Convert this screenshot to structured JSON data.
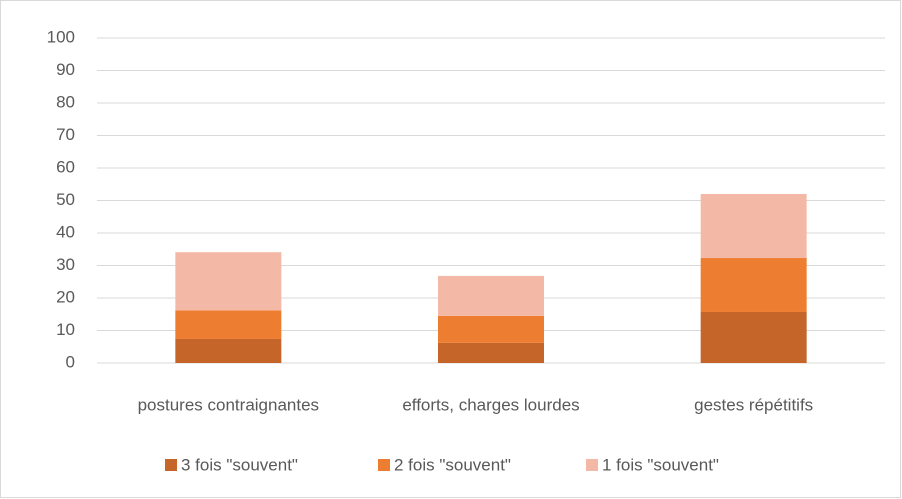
{
  "chart_data": {
    "type": "stacked_bar",
    "categories": [
      "postures contraignantes",
      "efforts, charges lourdes",
      "gestes répétitifs"
    ],
    "series": [
      {
        "name": "3 fois \"souvent\"",
        "color": "#c5652a",
        "values": [
          7.4,
          6.2,
          15.7
        ]
      },
      {
        "name": "2 fois \"souvent\"",
        "color": "#ed7d31",
        "values": [
          8.8,
          8.3,
          16.6
        ]
      },
      {
        "name": "1 fois \"souvent\"",
        "color": "#f4b9a6",
        "values": [
          17.9,
          12.3,
          19.7
        ]
      }
    ],
    "ylim": [
      0,
      100
    ],
    "yticks": [
      0,
      10,
      20,
      30,
      40,
      50,
      60,
      70,
      80,
      90,
      100
    ],
    "grid": true,
    "legend": "bottom"
  }
}
